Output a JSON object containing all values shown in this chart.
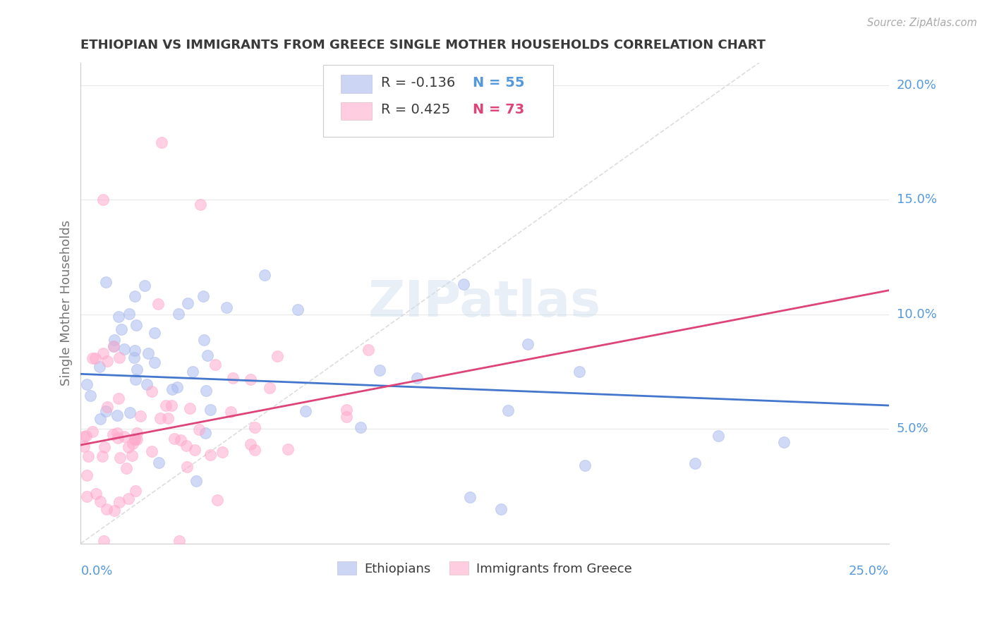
{
  "title": "ETHIOPIAN VS IMMIGRANTS FROM GREECE SINGLE MOTHER HOUSEHOLDS CORRELATION CHART",
  "source": "Source: ZipAtlas.com",
  "ylabel": "Single Mother Households",
  "xlim": [
    0.0,
    0.25
  ],
  "ylim": [
    0.0,
    0.21
  ],
  "yticks": [
    0.05,
    0.1,
    0.15,
    0.2
  ],
  "ytick_labels": [
    "5.0%",
    "10.0%",
    "15.0%",
    "20.0%"
  ],
  "title_color": "#3a3a3a",
  "source_color": "#aaaaaa",
  "ylabel_color": "#777777",
  "axis_color": "#cccccc",
  "grid_color": "#e8e8e8",
  "blue_scatter_color": "#aabbee",
  "pink_scatter_color": "#ffaacc",
  "blue_line_color": "#4477cc",
  "pink_line_color": "#dd4477",
  "diagonal_color": "#dddddd",
  "tick_label_color": "#5599dd",
  "legend_R_blue": "-0.136",
  "legend_N_blue": "55",
  "legend_R_pink": "0.425",
  "legend_N_pink": "73",
  "blue_intercept": 0.074,
  "blue_slope": -0.055,
  "pink_intercept": 0.043,
  "pink_slope": 0.27,
  "watermark": "ZIPatlas"
}
